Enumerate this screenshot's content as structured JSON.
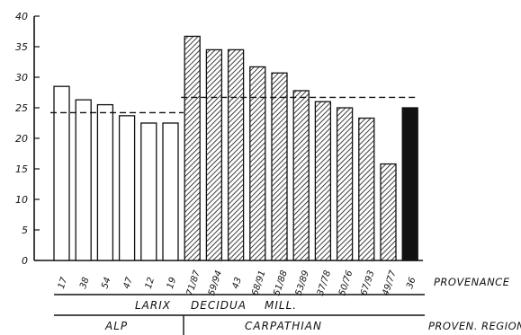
{
  "chart_data": {
    "type": "bar",
    "title": "",
    "xlabel": "",
    "ylabel": "",
    "ylim": [
      0,
      40
    ],
    "yticks": [
      0,
      5,
      10,
      15,
      20,
      25,
      30,
      35,
      40
    ],
    "categories": [
      "17",
      "38",
      "54",
      "47",
      "12",
      "19",
      "71/87",
      "59/94",
      "43",
      "68/91",
      "51/88",
      "53/89",
      "37/78",
      "50/76",
      "67/93",
      "49/77",
      "36"
    ],
    "values": [
      28.5,
      26.3,
      25.5,
      23.7,
      22.5,
      22.5,
      36.7,
      34.5,
      34.5,
      31.7,
      30.7,
      27.8,
      26.0,
      25.0,
      23.3,
      15.8,
      25.0
    ],
    "bar_styles": [
      "white",
      "white",
      "white",
      "white",
      "white",
      "white",
      "hatched",
      "hatched",
      "hatched",
      "hatched",
      "hatched",
      "hatched",
      "hatched",
      "hatched",
      "hatched",
      "hatched",
      "black"
    ],
    "reference_lines": [
      {
        "group": "ALP",
        "value": 24.2,
        "from_index": 0,
        "to_index": 5,
        "style": "dashed"
      },
      {
        "group": "CARPATHIAN",
        "value": 26.7,
        "from_index": 6,
        "to_index": 16,
        "style": "dashed"
      }
    ],
    "row_label_provenance": "PROVENANCE",
    "species_label": [
      "LARIX",
      "DECIDUA",
      "MILL."
    ],
    "region_row_label": "PROVEN. REGION",
    "regions": [
      {
        "name": "ALP",
        "from_index": 0,
        "to_index": 5
      },
      {
        "name": "CARPATHIAN",
        "from_index": 6,
        "to_index": 16
      }
    ],
    "grid": false,
    "legend": "none"
  }
}
